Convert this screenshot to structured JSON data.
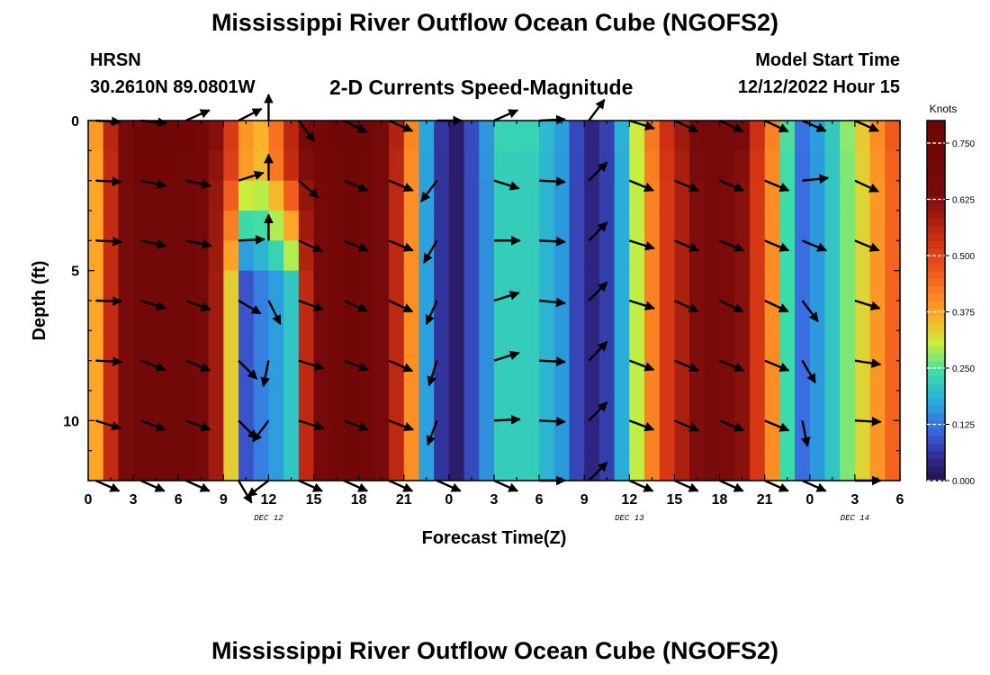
{
  "page": {
    "title_top": "Mississippi River Outflow Ocean Cube (NGOFS2)",
    "title_bottom": "Mississippi River Outflow Ocean Cube (NGOFS2)",
    "station": "HRSN",
    "location": "30.2610N  89.0801W",
    "plot_title": "2-D Currents Speed-Magnitude",
    "model_start_label": "Model Start Time",
    "model_start_value": "12/12/2022 Hour 15"
  },
  "chart_data": {
    "type": "heatmap",
    "xlabel": "Forecast Time(Z)",
    "ylabel": "Depth (ft)",
    "x_range_hours": [
      0,
      54
    ],
    "y_range_ft": [
      0,
      12
    ],
    "y_inverted": true,
    "x_ticks": [
      {
        "hour": 0,
        "label": "0"
      },
      {
        "hour": 3,
        "label": "3"
      },
      {
        "hour": 6,
        "label": "6"
      },
      {
        "hour": 9,
        "label": "9"
      },
      {
        "hour": 12,
        "label": "12"
      },
      {
        "hour": 15,
        "label": "15"
      },
      {
        "hour": 18,
        "label": "18"
      },
      {
        "hour": 21,
        "label": "21"
      },
      {
        "hour": 24,
        "label": "0"
      },
      {
        "hour": 27,
        "label": "3"
      },
      {
        "hour": 30,
        "label": "6"
      },
      {
        "hour": 33,
        "label": "9"
      },
      {
        "hour": 36,
        "label": "12"
      },
      {
        "hour": 39,
        "label": "15"
      },
      {
        "hour": 42,
        "label": "18"
      },
      {
        "hour": 45,
        "label": "21"
      },
      {
        "hour": 48,
        "label": "0"
      },
      {
        "hour": 51,
        "label": "3"
      },
      {
        "hour": 54,
        "label": "6"
      }
    ],
    "day_labels": [
      {
        "hour": 12,
        "label": "DEC 12"
      },
      {
        "hour": 36,
        "label": "DEC 13"
      },
      {
        "hour": 51,
        "label": "DEC 14"
      }
    ],
    "y_ticks": [
      {
        "depth": 0,
        "label": "0"
      },
      {
        "depth": 5,
        "label": "5"
      },
      {
        "depth": 10,
        "label": "10"
      }
    ],
    "colorbar": {
      "title": "Knots",
      "range": [
        0,
        0.8
      ],
      "ticks": [
        {
          "value": 0.0,
          "label": "0.000"
        },
        {
          "value": 0.125,
          "label": "0.125"
        },
        {
          "value": 0.25,
          "label": "0.250"
        },
        {
          "value": 0.375,
          "label": "0.375"
        },
        {
          "value": 0.5,
          "label": "0.500"
        },
        {
          "value": 0.625,
          "label": "0.625"
        },
        {
          "value": 0.75,
          "label": "0.750"
        }
      ]
    },
    "speed_by_hour": [
      {
        "h": 0,
        "s": 0.3
      },
      {
        "h": 0.8,
        "s": 0.42
      },
      {
        "h": 1.8,
        "s": 0.6
      },
      {
        "h": 3.5,
        "s": 0.72
      },
      {
        "h": 6,
        "s": 0.72
      },
      {
        "h": 8,
        "s": 0.66
      },
      {
        "h": 9.5,
        "s": 0.5
      },
      {
        "h": 10.5,
        "s": 0.38
      },
      {
        "h": 11.5,
        "s": 0.35
      },
      {
        "h": 12.5,
        "s": 0.42
      },
      {
        "h": 14,
        "s": 0.6
      },
      {
        "h": 16,
        "s": 0.7
      },
      {
        "h": 18,
        "s": 0.74
      },
      {
        "h": 20,
        "s": 0.62
      },
      {
        "h": 21.3,
        "s": 0.45
      },
      {
        "h": 22.2,
        "s": 0.22
      },
      {
        "h": 23,
        "s": 0.08
      },
      {
        "h": 24.6,
        "s": 0.02
      },
      {
        "h": 26,
        "s": 0.12
      },
      {
        "h": 27.5,
        "s": 0.22
      },
      {
        "h": 29.5,
        "s": 0.22
      },
      {
        "h": 31.5,
        "s": 0.16
      },
      {
        "h": 33,
        "s": 0.04
      },
      {
        "h": 34.2,
        "s": 0.04
      },
      {
        "h": 35.5,
        "s": 0.18
      },
      {
        "h": 37,
        "s": 0.36
      },
      {
        "h": 38.5,
        "s": 0.52
      },
      {
        "h": 41,
        "s": 0.66
      },
      {
        "h": 43.5,
        "s": 0.62
      },
      {
        "h": 45.2,
        "s": 0.45
      },
      {
        "h": 46.5,
        "s": 0.24
      },
      {
        "h": 47.5,
        "s": 0.12
      },
      {
        "h": 49,
        "s": 0.18
      },
      {
        "h": 51,
        "s": 0.3
      },
      {
        "h": 53,
        "s": 0.42
      },
      {
        "h": 54,
        "s": 0.48
      }
    ],
    "slack_dip_hours": [
      10.5,
      12,
      13
    ],
    "arrow_depths_ft": [
      0,
      2,
      4,
      6,
      8,
      10,
      12
    ],
    "arrow_columns": [
      {
        "h": 0.5,
        "dir": [
          [
            0.95,
            -0.05
          ],
          [
            0.97,
            -0.05
          ],
          [
            0.99,
            -0.05
          ],
          [
            0.99,
            -0.03
          ],
          [
            0.99,
            -0.05
          ],
          [
            0.95,
            -0.3
          ],
          [
            0.9,
            -0.4
          ]
        ]
      },
      {
        "h": 3.5,
        "dir": [
          [
            0.99,
            -0.1
          ],
          [
            0.97,
            -0.2
          ],
          [
            0.97,
            -0.2
          ],
          [
            0.95,
            -0.3
          ],
          [
            0.93,
            -0.35
          ],
          [
            0.93,
            -0.35
          ],
          [
            0.9,
            -0.4
          ]
        ]
      },
      {
        "h": 6.5,
        "dir": [
          [
            0.9,
            0.4
          ],
          [
            0.95,
            -0.2
          ],
          [
            0.97,
            -0.2
          ],
          [
            0.93,
            -0.35
          ],
          [
            0.92,
            -0.38
          ],
          [
            0.93,
            -0.35
          ],
          [
            0.9,
            -0.4
          ]
        ]
      },
      {
        "h": 10,
        "dir": [
          [
            0.88,
            0.45
          ],
          [
            0.95,
            0.3
          ],
          [
            0.99,
            0.05
          ],
          [
            0.85,
            -0.5
          ],
          [
            0.7,
            -0.7
          ],
          [
            0.7,
            -0.7
          ],
          [
            0.5,
            -0.85
          ]
        ]
      },
      {
        "h": 12,
        "dir": [
          [
            0.0,
            1.0
          ],
          [
            0.0,
            1.0
          ],
          [
            0.0,
            1.0
          ],
          [
            0.45,
            -0.9
          ],
          [
            -0.2,
            -0.98
          ],
          [
            -0.6,
            -0.8
          ],
          [
            -0.8,
            -0.6
          ]
        ]
      },
      {
        "h": 14,
        "dir": [
          [
            0.6,
            -0.8
          ],
          [
            0.75,
            -0.65
          ],
          [
            0.9,
            -0.42
          ],
          [
            0.93,
            -0.35
          ],
          [
            0.95,
            -0.3
          ],
          [
            0.95,
            -0.3
          ],
          [
            0.9,
            -0.4
          ]
        ]
      },
      {
        "h": 17,
        "dir": [
          [
            0.88,
            -0.45
          ],
          [
            0.92,
            -0.38
          ],
          [
            0.92,
            -0.38
          ],
          [
            0.9,
            -0.4
          ],
          [
            0.93,
            -0.35
          ],
          [
            0.93,
            -0.35
          ],
          [
            0.9,
            -0.4
          ]
        ]
      },
      {
        "h": 20,
        "dir": [
          [
            0.9,
            -0.4
          ],
          [
            0.92,
            -0.38
          ],
          [
            0.92,
            -0.38
          ],
          [
            0.9,
            -0.42
          ],
          [
            0.9,
            -0.4
          ],
          [
            0.93,
            -0.35
          ],
          [
            0.9,
            -0.4
          ]
        ]
      },
      {
        "h": 23.2,
        "dir": [
          [
            0.95,
            0.0
          ],
          [
            -0.6,
            -0.8
          ],
          [
            -0.5,
            -0.85
          ],
          [
            -0.4,
            -0.9
          ],
          [
            -0.3,
            -0.95
          ],
          [
            -0.35,
            -0.93
          ],
          [
            0.9,
            -0.4
          ]
        ]
      },
      {
        "h": 27,
        "dir": [
          [
            0.9,
            0.4
          ],
          [
            0.95,
            -0.3
          ],
          [
            0.99,
            0.0
          ],
          [
            0.95,
            0.3
          ],
          [
            0.95,
            0.3
          ],
          [
            0.99,
            0.05
          ],
          [
            0.9,
            -0.4
          ]
        ]
      },
      {
        "h": 30,
        "dir": [
          [
            0.99,
            0.05
          ],
          [
            0.99,
            -0.05
          ],
          [
            0.99,
            -0.05
          ],
          [
            0.99,
            -0.1
          ],
          [
            0.99,
            -0.05
          ],
          [
            0.99,
            -0.05
          ],
          [
            0.99,
            0.0
          ]
        ]
      },
      {
        "h": 33.3,
        "dir": [
          [
            0.6,
            0.8
          ],
          [
            0.7,
            0.7
          ],
          [
            0.7,
            0.7
          ],
          [
            0.7,
            0.7
          ],
          [
            0.7,
            0.72
          ],
          [
            0.7,
            0.7
          ],
          [
            0.7,
            0.7
          ]
        ]
      },
      {
        "h": 36,
        "dir": [
          [
            0.95,
            -0.3
          ],
          [
            0.92,
            -0.38
          ],
          [
            0.95,
            -0.3
          ],
          [
            0.95,
            -0.3
          ],
          [
            0.93,
            -0.35
          ],
          [
            0.93,
            -0.35
          ],
          [
            0.9,
            -0.4
          ]
        ]
      },
      {
        "h": 39,
        "dir": [
          [
            0.9,
            -0.42
          ],
          [
            0.92,
            -0.38
          ],
          [
            0.92,
            -0.38
          ],
          [
            0.9,
            -0.42
          ],
          [
            0.92,
            -0.38
          ],
          [
            0.92,
            -0.38
          ],
          [
            0.9,
            -0.4
          ]
        ]
      },
      {
        "h": 42,
        "dir": [
          [
            0.9,
            -0.42
          ],
          [
            0.92,
            -0.38
          ],
          [
            0.92,
            -0.38
          ],
          [
            0.9,
            -0.42
          ],
          [
            0.92,
            -0.38
          ],
          [
            0.92,
            -0.38
          ],
          [
            0.9,
            -0.4
          ]
        ]
      },
      {
        "h": 45,
        "dir": [
          [
            0.9,
            -0.42
          ],
          [
            0.92,
            -0.38
          ],
          [
            0.92,
            -0.38
          ],
          [
            0.9,
            -0.42
          ],
          [
            0.92,
            -0.38
          ],
          [
            0.92,
            -0.38
          ],
          [
            0.9,
            -0.4
          ]
        ]
      },
      {
        "h": 47.5,
        "dir": [
          [
            0.9,
            -0.4
          ],
          [
            0.99,
            0.1
          ],
          [
            0.92,
            -0.38
          ],
          [
            0.6,
            -0.8
          ],
          [
            0.5,
            -0.85
          ],
          [
            0.2,
            -0.98
          ],
          [
            0.9,
            -0.4
          ]
        ]
      },
      {
        "h": 51,
        "dir": [
          [
            0.9,
            -0.4
          ],
          [
            0.9,
            -0.42
          ],
          [
            0.92,
            -0.38
          ],
          [
            0.95,
            -0.3
          ],
          [
            0.98,
            -0.15
          ],
          [
            0.99,
            -0.05
          ],
          [
            0.99,
            0.0
          ]
        ]
      }
    ]
  }
}
